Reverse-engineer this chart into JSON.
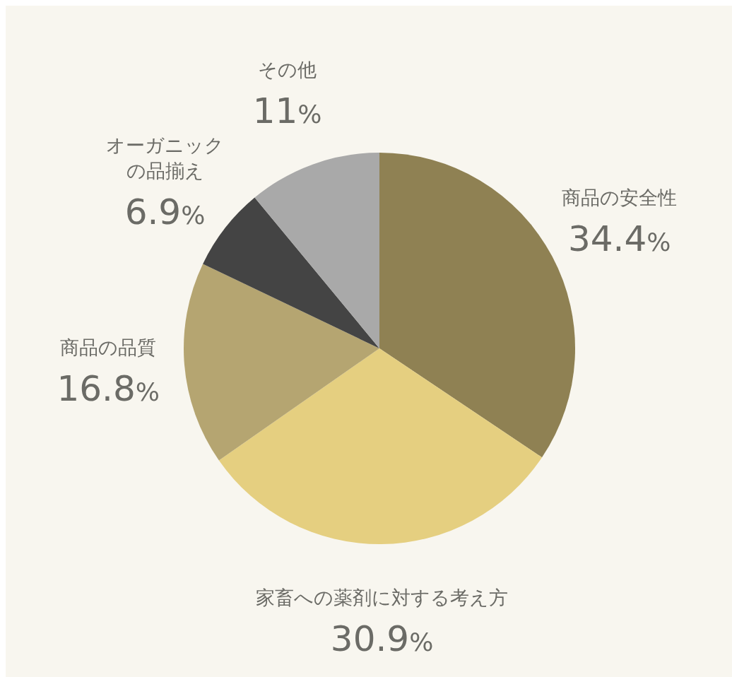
{
  "chart_data": {
    "type": "pie",
    "categories": [
      "商品の安全性",
      "家畜への薬剤に対する考え方",
      "商品の品質",
      "オーガニックの品揃え",
      "その他"
    ],
    "values": [
      34.4,
      30.9,
      16.8,
      6.9,
      11
    ],
    "value_labels": [
      "34.4%",
      "30.9%",
      "16.8%",
      "6.9%",
      "11%"
    ],
    "colors": [
      "#8f8153",
      "#e5cf80",
      "#b5a571",
      "#444444",
      "#a9a9a9"
    ]
  }
}
